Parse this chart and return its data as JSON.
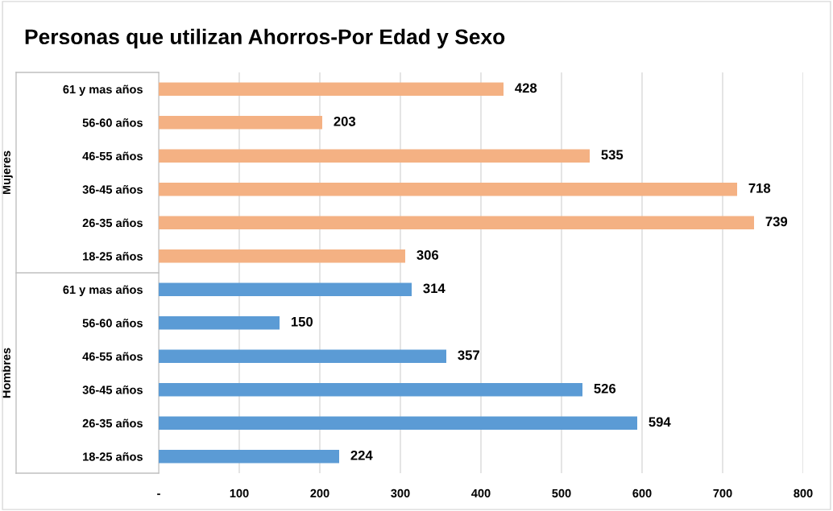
{
  "chart_data": {
    "type": "bar",
    "orientation": "horizontal",
    "title": "Personas que utilizan Ahorros-Por Edad y Sexo",
    "categories": [
      "61 y mas años",
      "56-60 años",
      "46-55 años",
      "36-45 años",
      "26-35 años",
      "18-25 años",
      "61 y mas años",
      "56-60 años",
      "46-55 años",
      "36-45 años",
      "26-35 años",
      "18-25 años"
    ],
    "values": [
      428,
      203,
      535,
      718,
      739,
      306,
      314,
      150,
      357,
      526,
      594,
      224
    ],
    "colors": [
      "#f4b183",
      "#f4b183",
      "#f4b183",
      "#f4b183",
      "#f4b183",
      "#f4b183",
      "#5b9bd5",
      "#5b9bd5",
      "#5b9bd5",
      "#5b9bd5",
      "#5b9bd5",
      "#5b9bd5"
    ],
    "annotations": [
      "Mujeres",
      "Hombres"
    ],
    "xlim": [
      0,
      800
    ],
    "xticks": [
      {
        "value": 0,
        "label": "-"
      },
      100,
      200,
      300,
      400,
      500,
      600,
      700,
      800
    ],
    "grid": "x",
    "data_labels": true
  }
}
